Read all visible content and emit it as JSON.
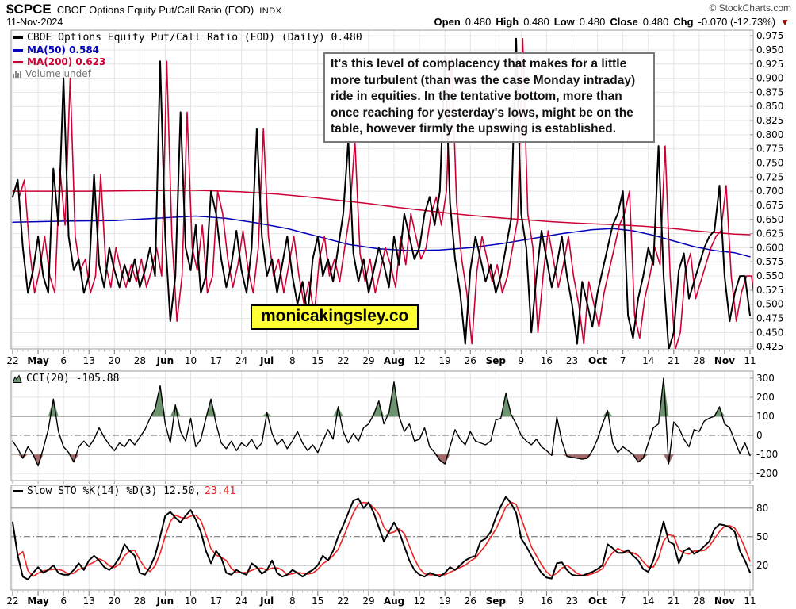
{
  "header": {
    "symbol": "$CPCE",
    "title": "CBOE Options Equity Put/Call Ratio (EOD)",
    "exchange": "INDX",
    "date": "11-Nov-2024",
    "copyright": "© StockCharts.com",
    "open_label": "Open",
    "open": "0.480",
    "high_label": "High",
    "high": "0.480",
    "low_label": "Low",
    "low": "0.480",
    "close_label": "Close",
    "close": "0.480",
    "chg_label": "Chg",
    "chg": "-0.070 (-12.73%)",
    "chg_triangle": "▼"
  },
  "legend": {
    "price": "CBOE Options Equity Put/Call Ratio (EOD) (Daily) 0.480",
    "ma50": "MA(50) 0.584",
    "ma200": "MA(200) 0.623",
    "volume": "Volume undef"
  },
  "cci": {
    "legend": "CCI(20) -105.88"
  },
  "sto": {
    "legend_k": "Slow STO %K(14) %D(3) 12.50,",
    "legend_d": "23.41"
  },
  "annotation": {
    "text": "It's this level of complacency that makes for a little more turbulent (than was the case Monday intraday) ride in equities. In the tentative bottom, more than once reaching for yesterday's lows, might be on the table, however firmly the upswing is established."
  },
  "watermark": "monicakingsley.co",
  "colors": {
    "price": "#000000",
    "ma50": "#0000bb",
    "ma200": "#cc0033",
    "overlay_red": "#cc0033",
    "sto_d": "#ee2222",
    "cci_fill_up": "#6f9470",
    "cci_fill_down": "#a26a6a",
    "grid": "#e4e4e4",
    "border": "#9a9a9a",
    "watermark_bg": "#ffff33",
    "chg_triangle": "#a00000"
  },
  "chart_data": [
    {
      "type": "line",
      "panel": "main",
      "title": "CBOE Options Equity Put/Call Ratio (EOD) (Daily)",
      "last_value": 0.48,
      "ylim": [
        0.421,
        0.985
      ],
      "y_ticks": [
        0.975,
        0.95,
        0.925,
        0.9,
        0.875,
        0.85,
        0.825,
        0.8,
        0.775,
        0.75,
        0.725,
        0.7,
        0.675,
        0.65,
        0.625,
        0.6,
        0.575,
        0.55,
        0.525,
        0.5,
        0.475,
        0.45,
        0.425
      ],
      "x_tick_labels": [
        "22",
        "May",
        "6",
        "13",
        "20",
        "28",
        "Jun",
        "10",
        "17",
        "24",
        "Jul",
        "8",
        "15",
        "22",
        "29",
        "Aug",
        "12",
        "19",
        "26",
        "Sep",
        "9",
        "16",
        "23",
        "Oct",
        "7",
        "14",
        "21",
        "28",
        "Nov",
        "11"
      ],
      "x_tick_days": [
        0,
        5,
        10,
        15,
        20,
        25,
        30,
        35,
        40,
        45,
        50,
        55,
        60,
        65,
        70,
        75,
        80,
        85,
        90,
        95,
        100,
        105,
        110,
        115,
        120,
        125,
        130,
        135,
        140,
        145
      ],
      "series": [
        {
          "name": "CPCE daily close",
          "color": "#000000",
          "width": 2,
          "values": [
            0.69,
            0.72,
            0.6,
            0.52,
            0.56,
            0.62,
            0.55,
            0.52,
            0.74,
            0.64,
            0.9,
            0.62,
            0.56,
            0.58,
            0.52,
            0.55,
            0.73,
            0.57,
            0.53,
            0.6,
            0.56,
            0.53,
            0.57,
            0.54,
            0.58,
            0.53,
            0.56,
            0.6,
            0.55,
            0.93,
            0.62,
            0.47,
            0.55,
            0.84,
            0.6,
            0.56,
            0.64,
            0.52,
            0.55,
            0.7,
            0.66,
            0.58,
            0.53,
            0.57,
            0.63,
            0.56,
            0.52,
            0.6,
            0.81,
            0.62,
            0.55,
            0.58,
            0.52,
            0.57,
            0.62,
            0.55,
            0.5,
            0.54,
            0.48,
            0.58,
            0.62,
            0.55,
            0.58,
            0.54,
            0.6,
            0.66,
            0.79,
            0.59,
            0.54,
            0.58,
            0.52,
            0.56,
            0.6,
            0.57,
            0.53,
            0.62,
            0.57,
            0.66,
            0.62,
            0.58,
            0.6,
            0.66,
            0.69,
            0.64,
            0.7,
            0.94,
            0.68,
            0.58,
            0.52,
            0.43,
            0.56,
            0.62,
            0.58,
            0.54,
            0.57,
            0.52,
            0.55,
            0.6,
            0.65,
            0.97,
            0.66,
            0.6,
            0.45,
            0.55,
            0.63,
            0.58,
            0.53,
            0.57,
            0.62,
            0.55,
            0.5,
            0.43,
            0.54,
            0.5,
            0.46,
            0.52,
            0.56,
            0.6,
            0.64,
            0.66,
            0.7,
            0.48,
            0.44,
            0.51,
            0.55,
            0.6,
            0.57,
            0.78,
            0.55,
            0.42,
            0.45,
            0.56,
            0.59,
            0.51,
            0.54,
            0.57,
            0.6,
            0.62,
            0.63,
            0.71,
            0.55,
            0.47,
            0.52,
            0.55,
            0.55,
            0.48
          ]
        },
        {
          "name": "author red overlay (price trace shifted)",
          "color": "#cc0033",
          "width": 1.6,
          "ref": 0,
          "offset_days": 1.3
        },
        {
          "name": "MA(50)",
          "value": 0.584,
          "color": "#0000bb",
          "width": 1.5,
          "points": [
            [
              0,
              0.645
            ],
            [
              10,
              0.647
            ],
            [
              20,
              0.648
            ],
            [
              30,
              0.653
            ],
            [
              36,
              0.656
            ],
            [
              42,
              0.652
            ],
            [
              48,
              0.644
            ],
            [
              54,
              0.634
            ],
            [
              60,
              0.62
            ],
            [
              66,
              0.606
            ],
            [
              72,
              0.598
            ],
            [
              78,
              0.595
            ],
            [
              84,
              0.596
            ],
            [
              90,
              0.6
            ],
            [
              96,
              0.607
            ],
            [
              102,
              0.616
            ],
            [
              108,
              0.625
            ],
            [
              114,
              0.632
            ],
            [
              118,
              0.634
            ],
            [
              122,
              0.63
            ],
            [
              126,
              0.622
            ],
            [
              130,
              0.612
            ],
            [
              134,
              0.602
            ],
            [
              138,
              0.595
            ],
            [
              142,
              0.591
            ],
            [
              145,
              0.584
            ]
          ]
        },
        {
          "name": "MA(200)",
          "value": 0.623,
          "color": "#cc0033",
          "width": 1.5,
          "points": [
            [
              0,
              0.7
            ],
            [
              15,
              0.7
            ],
            [
              25,
              0.701
            ],
            [
              35,
              0.702
            ],
            [
              45,
              0.699
            ],
            [
              52,
              0.695
            ],
            [
              58,
              0.69
            ],
            [
              64,
              0.684
            ],
            [
              70,
              0.678
            ],
            [
              76,
              0.671
            ],
            [
              82,
              0.665
            ],
            [
              88,
              0.659
            ],
            [
              94,
              0.654
            ],
            [
              100,
              0.65
            ],
            [
              106,
              0.646
            ],
            [
              112,
              0.643
            ],
            [
              118,
              0.641
            ],
            [
              124,
              0.638
            ],
            [
              130,
              0.634
            ],
            [
              134,
              0.63
            ],
            [
              138,
              0.627
            ],
            [
              142,
              0.624
            ],
            [
              145,
              0.623
            ]
          ]
        }
      ]
    },
    {
      "type": "area-line",
      "panel": "cci",
      "title": "CCI(20)",
      "last_value": -105.88,
      "ylim": [
        -237,
        337
      ],
      "y_ticks": [
        300,
        200,
        100,
        0,
        -100,
        -200
      ],
      "upper_threshold": 100,
      "lower_threshold": -100,
      "mid_line": 0,
      "values": [
        -30,
        -70,
        -120,
        -60,
        -100,
        -160,
        -70,
        30,
        190,
        20,
        -60,
        -90,
        -140,
        -60,
        -30,
        -60,
        -20,
        40,
        -10,
        -50,
        -80,
        -40,
        -60,
        -20,
        -50,
        -10,
        30,
        90,
        140,
        260,
        60,
        -40,
        160,
        20,
        -30,
        90,
        -60,
        -20,
        90,
        190,
        60,
        -40,
        -70,
        -30,
        -80,
        -40,
        -60,
        -20,
        -70,
        -40,
        120,
        10,
        -50,
        -20,
        -70,
        -30,
        20,
        -40,
        -80,
        -50,
        -90,
        -30,
        30,
        -20,
        150,
        20,
        -40,
        10,
        -30,
        40,
        60,
        110,
        180,
        60,
        120,
        280,
        100,
        20,
        60,
        -30,
        -20,
        40,
        -60,
        -90,
        -130,
        -150,
        -60,
        30,
        -20,
        -50,
        20,
        -30,
        -40,
        -50,
        -30,
        80,
        90,
        220,
        110,
        60,
        0,
        -30,
        -50,
        -20,
        -60,
        -80,
        -105,
        95,
        -30,
        -110,
        -115,
        -120,
        -125,
        -120,
        -80,
        -20,
        60,
        130,
        -40,
        -90,
        -60,
        -80,
        -100,
        -140,
        -120,
        -40,
        40,
        60,
        300,
        -150,
        70,
        40,
        -20,
        -60,
        30,
        20,
        75,
        90,
        100,
        150,
        60,
        40,
        -30,
        -95,
        -40,
        -105.88
      ]
    },
    {
      "type": "line",
      "panel": "sto",
      "title": "Slow STO %K(14) %D(3)",
      "k_last": 12.5,
      "d_last": 23.41,
      "ylim": [
        -6,
        104
      ],
      "y_ticks": [
        80,
        50,
        20
      ],
      "upper_threshold": 80,
      "lower_threshold": 20,
      "mid_line": 50,
      "d_is_sma_of_k": 3,
      "k_values": [
        65,
        30,
        8,
        5,
        12,
        18,
        12,
        15,
        20,
        12,
        10,
        10,
        15,
        22,
        15,
        25,
        30,
        25,
        18,
        15,
        20,
        28,
        42,
        35,
        30,
        12,
        10,
        18,
        30,
        50,
        72,
        76,
        70,
        65,
        72,
        78,
        68,
        55,
        35,
        22,
        35,
        28,
        12,
        10,
        15,
        12,
        10,
        22,
        18,
        11,
        15,
        25,
        12,
        8,
        10,
        15,
        12,
        8,
        12,
        15,
        20,
        30,
        25,
        35,
        50,
        62,
        75,
        88,
        90,
        80,
        86,
        75,
        60,
        45,
        55,
        65,
        55,
        40,
        25,
        15,
        10,
        8,
        12,
        10,
        8,
        12,
        18,
        15,
        20,
        25,
        28,
        30,
        45,
        48,
        55,
        70,
        82,
        92,
        85,
        75,
        48,
        40,
        30,
        20,
        12,
        7,
        6,
        22,
        23,
        15,
        10,
        9,
        9,
        11,
        13,
        16,
        20,
        42,
        38,
        33,
        33,
        36,
        30,
        25,
        16,
        13,
        25,
        45,
        66,
        45,
        42,
        22,
        35,
        38,
        32,
        35,
        40,
        45,
        58,
        63,
        62,
        60,
        55,
        35,
        25,
        12.5
      ]
    }
  ]
}
